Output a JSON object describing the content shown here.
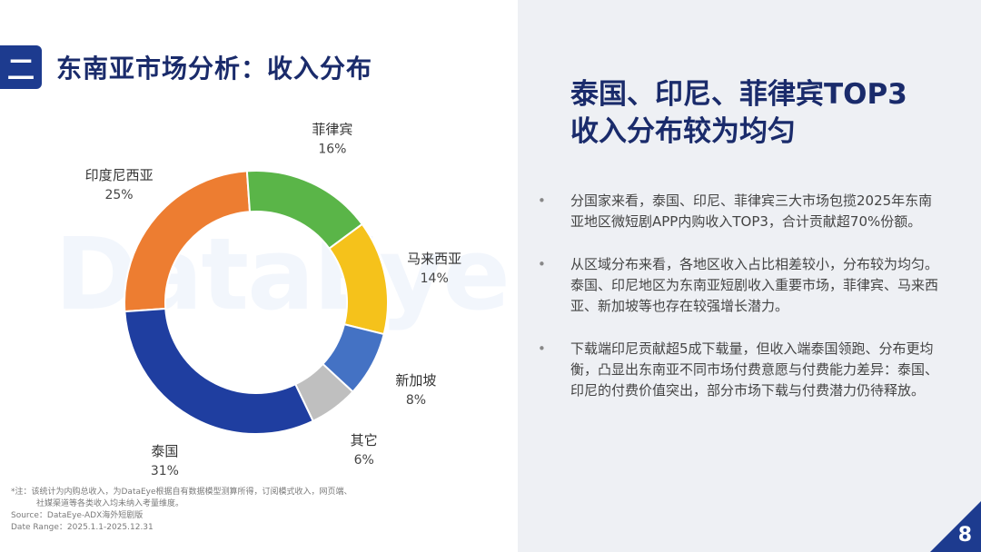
{
  "section_marker": "二",
  "title": "东南亚市场分析：收入分布",
  "watermark": "DataEye",
  "chart_data": {
    "type": "pie",
    "donut": true,
    "categories": [
      "泰国",
      "新加坡",
      "马来西亚",
      "菲律宾",
      "印度尼西亚",
      "其它"
    ],
    "slices": [
      {
        "label": "印度尼西亚",
        "value": 25,
        "value_text": "25%",
        "color": "#ed7d31"
      },
      {
        "label": "菲律宾",
        "value": 16,
        "value_text": "16%",
        "color": "#5ab548"
      },
      {
        "label": "马来西亚",
        "value": 14,
        "value_text": "14%",
        "color": "#f5c21b"
      },
      {
        "label": "新加坡",
        "value": 8,
        "value_text": "8%",
        "color": "#4472c4"
      },
      {
        "label": "其它",
        "value": 6,
        "value_text": "6%",
        "color": "#bfbfbf"
      },
      {
        "label": "泰国",
        "value": 31,
        "value_text": "31%",
        "color": "#1f3ea0"
      }
    ]
  },
  "notes": {
    "line1": "*注：该统计为内购总收入，为DataEye根据自有数据模型测算所得，订阅模式收入，网页端、",
    "line2": "社媒渠道等各类收入均未纳入考量维度。",
    "source": "Source：DataEye-ADX海外短剧版",
    "date_range": "Date Range：2025.1.1-2025.12.31"
  },
  "headline": {
    "line1": "泰国、印尼、菲律宾TOP3",
    "line2": "收入分布较为均匀"
  },
  "bullet_symbol": "•",
  "bullets": [
    "分国家来看，泰国、印尼、菲律宾三大市场包揽2025年东南亚地区微短剧APP内购收入TOP3，合计贡献超70%份额。",
    "从区域分布来看，各地区收入占比相差较小，分布较为均匀。泰国、印尼地区为东南亚短剧收入重要市场，菲律宾、马来西亚、新加坡等也存在较强增长潜力。",
    "下载端印尼贡献超5成下载量，但收入端泰国领跑、分布更均衡，凸显出东南亚不同市场付费意愿与付费能力差异：泰国、印尼的付费价值突出，部分市场下载与付费潜力仍待释放。"
  ],
  "page_number": "8",
  "colors": {
    "brand_navy": "#1a2b6b",
    "brand_blue": "#1d3b8f",
    "panel_bg": "#eef0f4"
  }
}
